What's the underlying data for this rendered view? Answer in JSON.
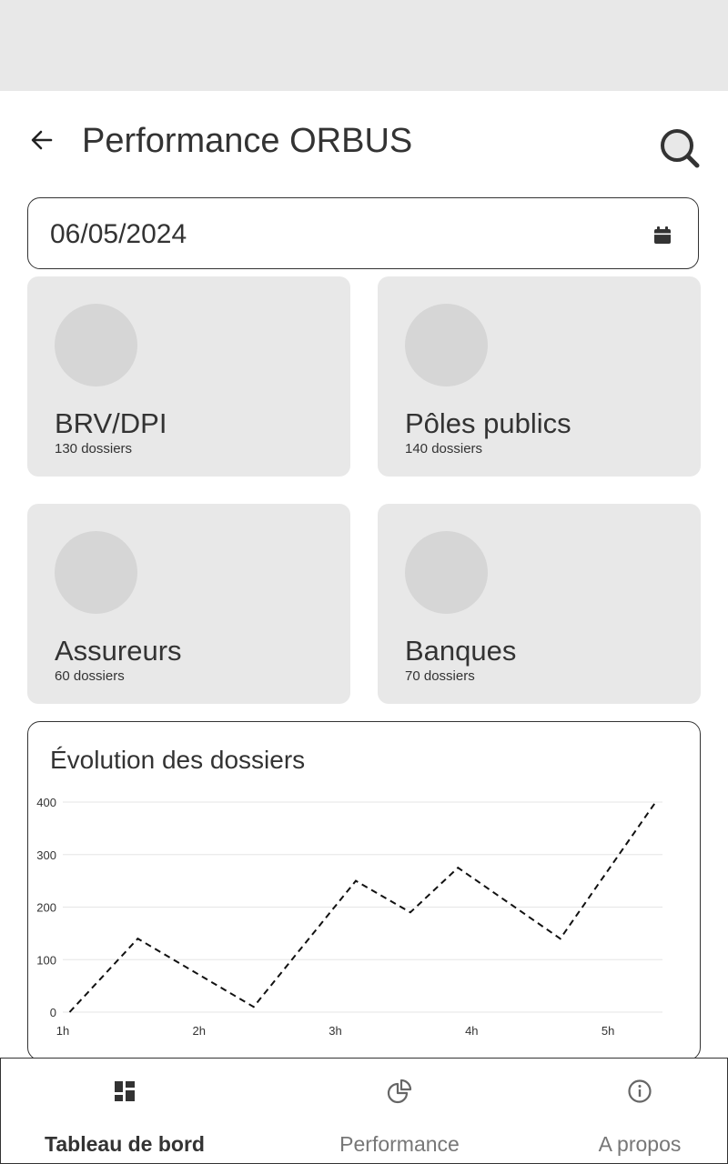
{
  "header": {
    "title": "Performance ORBUS"
  },
  "date_field": {
    "value": "06/05/2024"
  },
  "cards": [
    {
      "title": "BRV/DPI",
      "subtitle": "130 dossiers"
    },
    {
      "title": "Pôles publics",
      "subtitle": "140 dossiers"
    },
    {
      "title": "Assureurs",
      "subtitle": "60 dossiers"
    },
    {
      "title": "Banques",
      "subtitle": "70 dossiers"
    }
  ],
  "chart": {
    "title": "Évolution des dossiers"
  },
  "chart_data": {
    "type": "line",
    "title": "Évolution des dossiers",
    "x_ticks": [
      "1h",
      "2h",
      "3h",
      "4h",
      "5h"
    ],
    "y_ticks": [
      0,
      100,
      200,
      300,
      400
    ],
    "ylim": [
      0,
      400
    ],
    "xlim": [
      1,
      5.4
    ],
    "grid": true,
    "line_style": "dashed",
    "series": [
      {
        "x": [
          1.05,
          1.55,
          2.4,
          3.15,
          3.55,
          3.9,
          4.65,
          5.35
        ],
        "y": [
          0,
          140,
          10,
          250,
          190,
          275,
          140,
          400
        ]
      }
    ],
    "colors": {
      "line": "#111111",
      "grid": "#e6e6e6"
    }
  },
  "bottom_nav": {
    "items": [
      {
        "label": "Tableau de bord",
        "icon": "dashboard-icon",
        "active": true
      },
      {
        "label": "Performance",
        "icon": "pie-chart-icon",
        "active": false
      },
      {
        "label": "A propos",
        "icon": "info-icon",
        "active": false
      }
    ]
  },
  "colors": {
    "text": "#333333",
    "card_bg": "#e8e8e8",
    "avatar": "#d6d6d6",
    "status_bar": "#e8e8e8",
    "inactive": "#777777"
  }
}
